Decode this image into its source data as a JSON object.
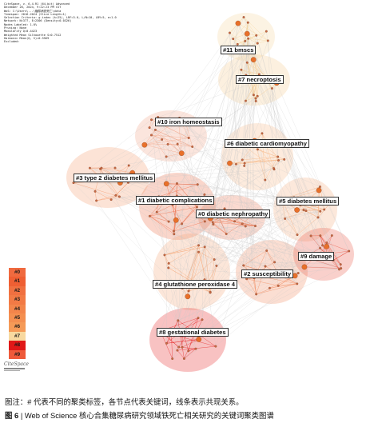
{
  "meta_lines": [
    "CiteSpace, v. 6.4.R1 (64-bit) Advanced",
    "December 26, 2024, 9:22:23 PM CST",
    "WoS: C:\\Users\\...\\糖尿病铁死亡\\data",
    "Timespan: 2016-2024 (Slice Length=1)",
    "Selection Criteria: g-index (k=25), LRF=3.0, L/N=10, LBY=5, e=1.0",
    "Network: N=377, E=2306 (Density=0.0326)",
    "Nodes Labeled: 1.0%",
    "Pruning: None",
    "Modularity Q=0.4423",
    "Weighted Mean Silhouette S=0.7512",
    "Harmonic Mean(Q, S)=0.5569",
    "Excluded:"
  ],
  "clusters": [
    {
      "id": "#0",
      "label": "#0 diabetic nephropathy",
      "color": "#f07a55"
    },
    {
      "id": "#1",
      "label": "#1 diabetic complications",
      "color": "#ee6a45"
    },
    {
      "id": "#2",
      "label": "#2 susceptibility",
      "color": "#f18a5e"
    },
    {
      "id": "#3",
      "label": "#3 type 2 diabetes mellitus",
      "color": "#f3996a"
    },
    {
      "id": "#4",
      "label": "#4 glutathione peroxidase 4",
      "color": "#f5a676"
    },
    {
      "id": "#5",
      "label": "#5 diabetes mellitus",
      "color": "#f6ae7c"
    },
    {
      "id": "#6",
      "label": "#6 diabetic cardiomyopathy",
      "color": "#f7b886"
    },
    {
      "id": "#7",
      "label": "#7 necroptosis",
      "color": "#f3c98c"
    },
    {
      "id": "#8",
      "label": "#8 gestational diabetes",
      "color": "#e62424"
    },
    {
      "id": "#9",
      "label": "#9 damage",
      "color": "#e85545"
    },
    {
      "id": "#10",
      "label": "#10 iron homeostasis",
      "color": "#f1a384"
    },
    {
      "id": "#11",
      "label": "#11 bmscs",
      "color": "#f5d49a"
    }
  ],
  "legend": [
    {
      "label": "#0",
      "color": "#f06a3f"
    },
    {
      "label": "#1",
      "color": "#ef5f33"
    },
    {
      "label": "#2",
      "color": "#f07040"
    },
    {
      "label": "#3",
      "color": "#f27a45"
    },
    {
      "label": "#4",
      "color": "#f3854b"
    },
    {
      "label": "#5",
      "color": "#f48f50"
    },
    {
      "label": "#6",
      "color": "#f59a57"
    },
    {
      "label": "#7",
      "color": "#f8d9a0"
    },
    {
      "label": "#8",
      "color": "#e01818"
    },
    {
      "label": "#9",
      "color": "#ee5a3a"
    }
  ],
  "logo_text": "CiteSpace",
  "caption": {
    "note": "图注：# 代表不同的聚类标签，各节点代表关键词，线条表示共现关系。",
    "figure_no": "图 6",
    "separator": "|",
    "title": "Web of Science 核心合集糖尿病研究领域铁死亡相关研究的关键词聚类图谱"
  }
}
